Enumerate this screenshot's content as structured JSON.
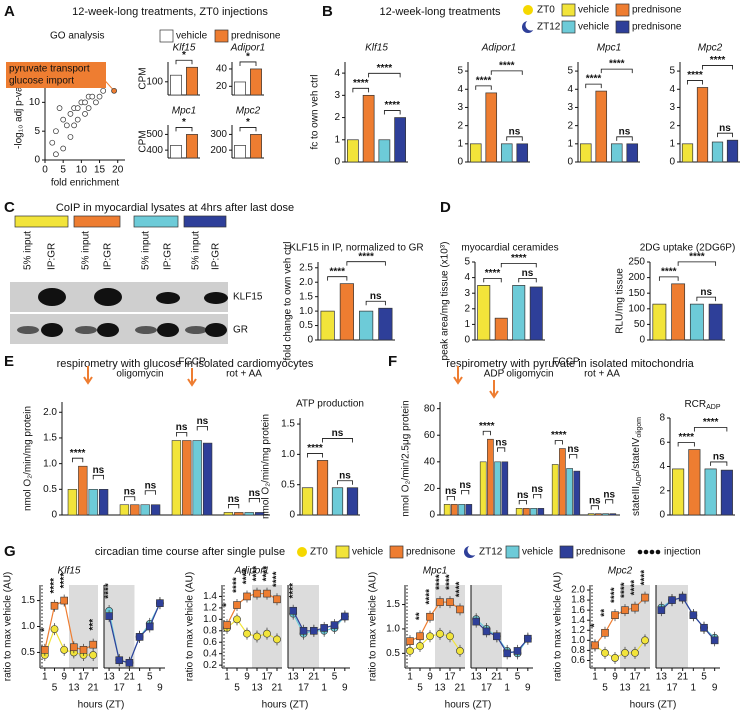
{
  "panel_labels": [
    "A",
    "B",
    "C",
    "D",
    "E",
    "F",
    "G"
  ],
  "headings": [
    "12-week-long treatments, ZT0 injections",
    "12-week-long treatments",
    "CoIP in myocardial lysates at 4hrs after last dose",
    "respirometry with glucose in isolated cardiomyocytes",
    "respirometry with pyruvate in isolated mitochondria",
    "circadian time course after single pulse"
  ],
  "legend_top": {
    "zt0": "ZT0",
    "zt12": "ZT12",
    "vehicle": "vehicle",
    "prednisone": "prednisone"
  },
  "legend_a": {
    "vehicle": "vehicle",
    "prednisone": "prednisone"
  },
  "legend_g": {
    "zt0": "ZT0",
    "zt12": "ZT12",
    "vehicle": "vehicle",
    "prednisone": "prednisone",
    "injection": "injection"
  },
  "blot": {
    "lanes": [
      "5% input",
      "IP:GR",
      "5% input",
      "IP:GR",
      "5% input",
      "IP:GR",
      "5% input",
      "IP:GR"
    ],
    "bands": [
      "KLF15",
      "GR"
    ]
  },
  "chart_data": [
    {
      "type": "scatter",
      "title": "GO analysis",
      "xlabel": "fold enrichment",
      "ylabel": "-log₁₀ adj p-value",
      "labels": [
        "pyruvate transport",
        "glucose import"
      ],
      "x": [
        2,
        3,
        4,
        5,
        6,
        7,
        8,
        9,
        9,
        10,
        11,
        12,
        13,
        14,
        15,
        16,
        5,
        7,
        3,
        11,
        12,
        8,
        19
      ],
      "y": [
        3,
        5,
        9,
        7,
        6,
        8,
        9,
        9,
        7,
        10,
        10,
        11,
        11,
        10,
        11,
        12,
        2,
        4,
        1,
        8,
        9,
        6,
        12
      ],
      "xlim": [
        0,
        22
      ],
      "xticks": [
        0,
        5,
        10,
        15,
        20
      ],
      "ylim": [
        0,
        17
      ],
      "yticks": [
        0,
        5,
        10,
        15
      ]
    },
    {
      "type": "bar",
      "title": "Klf15",
      "italic_title": true,
      "ylabel": "CPM",
      "values": [
        150,
        210
      ],
      "colors": [
        "#ffffff",
        "#ee7d31"
      ],
      "ylim": [
        0,
        250
      ],
      "yticks": [
        100
      ],
      "annotations": [
        "*"
      ]
    },
    {
      "type": "bar",
      "title": "Adipor1",
      "italic_title": true,
      "values": [
        25,
        40
      ],
      "colors": [
        "#ffffff",
        "#ee7d31"
      ],
      "ylim": [
        10,
        48
      ],
      "yticks": [
        20,
        40
      ],
      "annotations": [
        "*"
      ]
    },
    {
      "type": "bar",
      "title": "Mpc1",
      "italic_title": true,
      "ylabel": "CPM",
      "values": [
        430,
        500
      ],
      "colors": [
        "#ffffff",
        "#ee7d31"
      ],
      "ylim": [
        350,
        560
      ],
      "yticks": [
        400,
        500
      ],
      "annotations": [
        "*"
      ]
    },
    {
      "type": "bar",
      "title": "Mpc2",
      "italic_title": true,
      "values": [
        230,
        300
      ],
      "colors": [
        "#ffffff",
        "#ee7d31"
      ],
      "ylim": [
        150,
        360
      ],
      "yticks": [
        200,
        300
      ],
      "annotations": [
        "*"
      ]
    },
    {
      "type": "bar",
      "title": "Klf15",
      "italic_title": true,
      "ylabel": "fc to own veh ctrl",
      "values": [
        1,
        3,
        1,
        2
      ],
      "colors": [
        "#f2e43a",
        "#ee7d31",
        "#6dcbd8",
        "#2e3f99"
      ],
      "ylim": [
        0,
        4.5
      ],
      "yticks": [
        0,
        1,
        2,
        3,
        4
      ],
      "annotations": [
        "****",
        "****",
        "****"
      ]
    },
    {
      "type": "bar",
      "title": "Adipor1",
      "italic_title": true,
      "values": [
        1,
        3.8,
        1,
        1
      ],
      "colors": [
        "#f2e43a",
        "#ee7d31",
        "#6dcbd8",
        "#2e3f99"
      ],
      "ylim": [
        0,
        5.5
      ],
      "yticks": [
        0,
        1,
        2,
        3,
        4,
        5
      ],
      "annotations": [
        "****",
        "ns",
        "****"
      ]
    },
    {
      "type": "bar",
      "title": "Mpc1",
      "italic_title": true,
      "values": [
        1,
        3.9,
        1,
        1
      ],
      "colors": [
        "#f2e43a",
        "#ee7d31",
        "#6dcbd8",
        "#2e3f99"
      ],
      "ylim": [
        0,
        5.5
      ],
      "yticks": [
        0,
        1,
        2,
        3,
        4,
        5
      ],
      "annotations": [
        "****",
        "ns",
        "****"
      ]
    },
    {
      "type": "bar",
      "title": "Mpc2",
      "italic_title": true,
      "values": [
        1,
        4.1,
        1.1,
        1.2
      ],
      "colors": [
        "#f2e43a",
        "#ee7d31",
        "#6dcbd8",
        "#2e3f99"
      ],
      "ylim": [
        0,
        5.5
      ],
      "yticks": [
        0,
        1,
        2,
        3,
        4,
        5
      ],
      "annotations": [
        "****",
        "ns",
        "****"
      ]
    },
    {
      "type": "bar",
      "title": "KLF15 in IP, normalized to GR",
      "ylabel": "fold change to own veh ctrl",
      "values": [
        1,
        1.95,
        1,
        1.1
      ],
      "colors": [
        "#f2e43a",
        "#ee7d31",
        "#6dcbd8",
        "#2e3f99"
      ],
      "ylim": [
        0,
        2.7
      ],
      "yticks": [
        0,
        0.5,
        {
          "value": 1,
          "label": "1.0"
        },
        1.5,
        {
          "value": 2,
          "label": "2.0"
        },
        2.5
      ],
      "annotations": [
        "****",
        "ns",
        "****"
      ]
    },
    {
      "type": "bar",
      "title": "myocardial ceramides",
      "ylabel": "peak area/mg tissue (x10³)",
      "values": [
        3.5,
        1.4,
        3.5,
        3.4
      ],
      "colors": [
        "#f2e43a",
        "#ee7d31",
        "#6dcbd8",
        "#2e3f99"
      ],
      "ylim": [
        0,
        5
      ],
      "yticks": [
        0,
        1,
        2,
        3,
        4,
        5
      ],
      "annotations": [
        "****",
        "ns",
        "****"
      ]
    },
    {
      "type": "bar",
      "title": "2DG uptake (2DG6P)",
      "ylabel": "RLU/mg tissue",
      "values": [
        115,
        180,
        115,
        115
      ],
      "colors": [
        "#f2e43a",
        "#ee7d31",
        "#6dcbd8",
        "#2e3f99"
      ],
      "ylim": [
        0,
        250
      ],
      "yticks": [
        0,
        50,
        100,
        150,
        200,
        250
      ],
      "annotations": [
        "****",
        "ns",
        "****"
      ]
    },
    {
      "type": "bar",
      "ylabel": "nmol O₂/min/mg protein",
      "categories": [
        null,
        "oligomycin",
        "FCCP",
        "rot + AA"
      ],
      "series": [
        {
          "color": "#f2e43a",
          "values": [
            0.5,
            0.2,
            1.45,
            0.05
          ]
        },
        {
          "color": "#ee7d31",
          "values": [
            0.95,
            0.2,
            1.45,
            0.05
          ]
        },
        {
          "color": "#6dcbd8",
          "values": [
            0.5,
            0.2,
            1.45,
            0.05
          ]
        },
        {
          "color": "#2e3f99",
          "values": [
            0.5,
            0.2,
            1.4,
            0.05
          ]
        }
      ],
      "ylim": [
        0,
        2.2
      ],
      "yticks": [
        0,
        0.5,
        {
          "value": 1,
          "label": "1.0"
        },
        1.5,
        {
          "value": 2,
          "label": "2.0"
        }
      ],
      "annotations": [
        "****",
        "ns",
        "ns",
        "ns",
        "ns",
        "ns",
        "ns",
        "ns"
      ]
    },
    {
      "type": "bar",
      "title": "ATP production",
      "ylabel": "nmol O₂/min/mg protein",
      "values": [
        0.45,
        0.9,
        0.45,
        0.45
      ],
      "colors": [
        "#f2e43a",
        "#ee7d31",
        "#6dcbd8",
        "#2e3f99"
      ],
      "ylim": [
        0,
        1.6
      ],
      "yticks": [
        0,
        0.5,
        {
          "value": 1,
          "label": "1.0"
        },
        1.5
      ],
      "annotations": [
        "****",
        "ns",
        "ns"
      ]
    },
    {
      "type": "bar",
      "ylabel": "nmol O₂/min/2.5μg protein",
      "categories": [
        null,
        "ADP",
        "oligomycin",
        "FCCP",
        "rot + AA"
      ],
      "series": [
        {
          "color": "#f2e43a",
          "values": [
            8,
            40,
            5,
            38,
            1
          ]
        },
        {
          "color": "#ee7d31",
          "values": [
            8,
            57,
            5,
            50,
            1
          ]
        },
        {
          "color": "#6dcbd8",
          "values": [
            8,
            40,
            5,
            35,
            1
          ]
        },
        {
          "color": "#2e3f99",
          "values": [
            8,
            40,
            5,
            33,
            1
          ]
        }
      ],
      "ylim": [
        0,
        85
      ],
      "yticks": [
        0,
        20,
        40,
        60,
        80
      ],
      "annotations": [
        "ns",
        "ns",
        "****",
        "ns",
        "ns",
        "ns",
        "****",
        "ns",
        "ns",
        "ns"
      ]
    },
    {
      "type": "bar",
      "title": [
        "RCR",
        "ADP"
      ],
      "ylabel": [
        "stateIII",
        "ADP",
        "/stateIV",
        "oligom"
      ],
      "values": [
        3.8,
        5.4,
        3.8,
        3.7
      ],
      "colors": [
        "#f2e43a",
        "#ee7d31",
        "#6dcbd8",
        "#2e3f99"
      ],
      "ylim": [
        0,
        8
      ],
      "yticks": [
        0,
        2,
        4,
        6,
        8
      ],
      "annotations": [
        "****",
        "ns",
        "****"
      ]
    },
    {
      "type": "line",
      "title": "Klf15",
      "italic_title": true,
      "ylabel": "ratio to max vehicle (AU)",
      "xlabel": "hours (ZT)",
      "categories": [
        "1",
        "5",
        "9",
        "13",
        "17",
        "21"
      ],
      "series": [
        {
          "name": "vehicle",
          "color": "#f2e43a",
          "values": [
            0.45,
            0.95,
            0.55,
            0.5,
            0.45,
            0.45
          ]
        },
        {
          "name": "prednisone",
          "color": "#ee7d31",
          "values": [
            0.55,
            1.4,
            1.5,
            0.6,
            0.55,
            0.65
          ]
        }
      ],
      "ylim": [
        0.2,
        1.8
      ],
      "yticks": [
        0.5,
        {
          "value": 1,
          "label": "1.0"
        },
        1.5
      ],
      "annotations": [
        "*",
        "****",
        "****",
        "***"
      ]
    },
    {
      "type": "line",
      "categories": [
        "13",
        "17",
        "21",
        "1",
        "5",
        "9"
      ],
      "series": [
        {
          "name": "vehicle",
          "color": "#6dcbd8",
          "values": [
            1.3,
            0.35,
            0.3,
            0.8,
            1.05,
            1.45
          ]
        },
        {
          "name": "prednisone",
          "color": "#2e3f99",
          "values": [
            1.2,
            0.35,
            0.3,
            0.8,
            1.0,
            1.45
          ]
        }
      ],
      "ylim": [
        0.2,
        1.8
      ],
      "annotations": [
        "****"
      ]
    },
    {
      "type": "line",
      "title": "Adipor1",
      "italic_title": true,
      "ylabel": "ratio to max vehicle (AU)",
      "xlabel": "hours (ZT)",
      "categories": [
        "1",
        "5",
        "9",
        "13",
        "17",
        "21"
      ],
      "series": [
        {
          "name": "vehicle",
          "color": "#f2e43a",
          "values": [
            0.85,
            1.0,
            0.75,
            0.7,
            0.75,
            0.65
          ]
        },
        {
          "name": "prednisone",
          "color": "#ee7d31",
          "values": [
            0.9,
            1.25,
            1.4,
            1.45,
            1.45,
            1.35
          ]
        }
      ],
      "ylim": [
        0.15,
        1.6
      ],
      "yticks": [
        0.2,
        0.4,
        0.6,
        0.8,
        {
          "value": 1,
          "label": "1.0"
        },
        1.2,
        1.4
      ],
      "annotations": [
        "*",
        "****",
        "****",
        "****",
        "****",
        "****"
      ]
    },
    {
      "type": "line",
      "categories": [
        "13",
        "17",
        "21",
        "1",
        "5",
        "9"
      ],
      "series": [
        {
          "name": "vehicle",
          "color": "#6dcbd8",
          "values": [
            1.1,
            0.75,
            0.8,
            0.8,
            0.85,
            1.05
          ]
        },
        {
          "name": "prednisone",
          "color": "#2e3f99",
          "values": [
            1.15,
            0.8,
            0.8,
            0.85,
            0.9,
            1.05
          ]
        }
      ],
      "ylim": [
        0.15,
        1.6
      ],
      "annotations": [
        "****"
      ]
    },
    {
      "type": "line",
      "title": "Mpc1",
      "italic_title": true,
      "ylabel": "ratio to max vehicle (AU)",
      "xlabel": "hours (ZT)",
      "categories": [
        "1",
        "5",
        "9",
        "13",
        "17",
        "21"
      ],
      "series": [
        {
          "name": "vehicle",
          "color": "#f2e43a",
          "values": [
            0.55,
            0.65,
            0.85,
            0.9,
            0.85,
            0.55
          ]
        },
        {
          "name": "prednisone",
          "color": "#ee7d31",
          "values": [
            0.75,
            0.85,
            1.25,
            1.55,
            1.55,
            1.4
          ]
        }
      ],
      "ylim": [
        0.2,
        1.9
      ],
      "yticks": [
        0.5,
        {
          "value": 1,
          "label": "1.0"
        },
        1.5
      ],
      "annotations": [
        "**",
        "****",
        "****",
        "****",
        "****"
      ]
    },
    {
      "type": "line",
      "categories": [
        "13",
        "17",
        "21",
        "1",
        "5",
        "9"
      ],
      "series": [
        {
          "name": "vehicle",
          "color": "#6dcbd8",
          "values": [
            1.2,
            1.0,
            0.85,
            0.55,
            0.5,
            0.8
          ]
        },
        {
          "name": "prednisone",
          "color": "#2e3f99",
          "values": [
            1.15,
            0.95,
            0.85,
            0.5,
            0.55,
            0.8
          ]
        }
      ],
      "ylim": [
        0.2,
        1.9
      ]
    },
    {
      "type": "line",
      "title": "Mpc2",
      "italic_title": true,
      "ylabel": "ratio to max vehicle (AU)",
      "xlabel": "hours (ZT)",
      "categories": [
        "1",
        "5",
        "9",
        "13",
        "17",
        "21"
      ],
      "series": [
        {
          "name": "vehicle",
          "color": "#f2e43a",
          "values": [
            0.9,
            0.75,
            0.65,
            0.75,
            0.75,
            1.0
          ]
        },
        {
          "name": "prednisone",
          "color": "#ee7d31",
          "values": [
            0.9,
            1.15,
            1.5,
            1.6,
            1.65,
            1.85
          ]
        }
      ],
      "ylim": [
        0.45,
        2.1
      ],
      "yticks": [
        0.6,
        0.8,
        {
          "value": 1,
          "label": "1.0"
        },
        1.2,
        1.4,
        1.6,
        1.8,
        {
          "value": 2,
          "label": "2.0"
        }
      ],
      "annotations": [
        "*",
        "**",
        "****",
        "****",
        "****",
        "****"
      ]
    },
    {
      "type": "line",
      "categories": [
        "13",
        "17",
        "21",
        "1",
        "5",
        "9"
      ],
      "series": [
        {
          "name": "vehicle",
          "color": "#6dcbd8",
          "values": [
            1.65,
            1.8,
            1.85,
            1.5,
            1.25,
            1.05
          ]
        },
        {
          "name": "prednisone",
          "color": "#2e3f99",
          "values": [
            1.6,
            1.8,
            1.85,
            1.5,
            1.25,
            1.0
          ]
        }
      ],
      "ylim": [
        0.45,
        2.1
      ]
    }
  ]
}
